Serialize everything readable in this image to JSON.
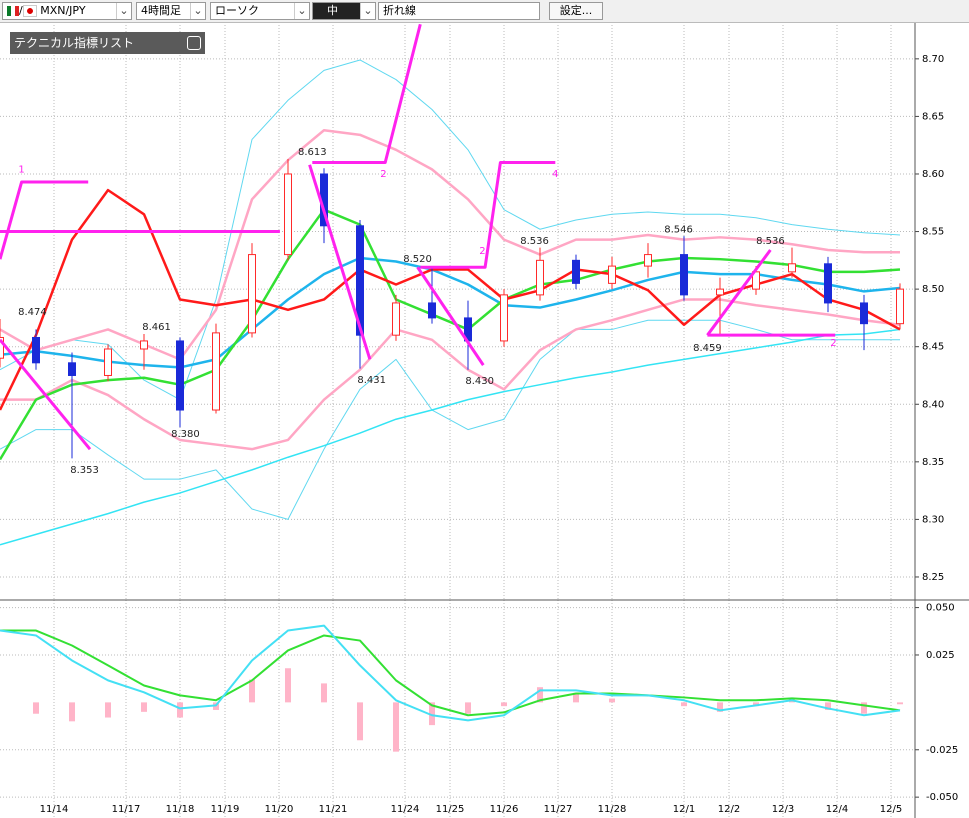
{
  "toolbar": {
    "symbol": "MXN/JPY",
    "timeframe": "4時間足",
    "chart_type": "ローソク",
    "size": "中",
    "line_type": "折れ線",
    "settings": "設定..."
  },
  "indicator_panel": {
    "title": "テクニカル指標リスト"
  },
  "chart_data": [
    {
      "type": "candlestick",
      "x": [
        0,
        4,
        8,
        12,
        16,
        20,
        24,
        28,
        32,
        36,
        40,
        44,
        48,
        52,
        56,
        60,
        64,
        68,
        72,
        76,
        80,
        84,
        88,
        92,
        96,
        100
      ],
      "open": [
        8.44,
        8.458,
        8.436,
        8.425,
        8.448,
        8.455,
        8.395,
        8.462,
        8.53,
        8.6,
        8.555,
        8.46,
        8.488,
        8.475,
        8.455,
        8.495,
        8.525,
        8.505,
        8.52,
        8.53,
        8.495,
        8.5,
        8.515,
        8.522,
        8.488,
        8.47
      ],
      "high": [
        8.474,
        8.465,
        8.445,
        8.452,
        8.461,
        8.458,
        8.47,
        8.54,
        8.613,
        8.605,
        8.56,
        8.495,
        8.52,
        8.49,
        8.5,
        8.536,
        8.53,
        8.528,
        8.54,
        8.546,
        8.51,
        8.52,
        8.536,
        8.528,
        8.495,
        8.505
      ],
      "low": [
        8.432,
        8.43,
        8.353,
        8.42,
        8.43,
        8.38,
        8.392,
        8.458,
        8.525,
        8.54,
        8.431,
        8.455,
        8.47,
        8.43,
        8.45,
        8.49,
        8.5,
        8.5,
        8.51,
        8.49,
        8.459,
        8.495,
        8.51,
        8.48,
        8.447,
        8.465
      ],
      "close": [
        8.458,
        8.436,
        8.425,
        8.448,
        8.455,
        8.395,
        8.462,
        8.53,
        8.6,
        8.555,
        8.46,
        8.488,
        8.475,
        8.455,
        8.495,
        8.525,
        8.505,
        8.52,
        8.53,
        8.495,
        8.5,
        8.515,
        8.522,
        8.488,
        8.47,
        8.5
      ],
      "up_color": "#ff2a2a",
      "down_color": "#1a2ad8",
      "series": [
        {
          "color": "#5fd8f0",
          "width": 1,
          "values": [
            8.43,
            8.447,
            8.456,
            8.452,
            8.421,
            8.404,
            8.491,
            8.63,
            8.664,
            8.69,
            8.699,
            8.682,
            8.656,
            8.621,
            8.569,
            8.552,
            8.56,
            8.565,
            8.567,
            8.565,
            8.565,
            8.562,
            8.556,
            8.552,
            8.549,
            8.547
          ]
        },
        {
          "color": "#5fd8f0",
          "width": 1,
          "values": [
            8.361,
            8.378,
            8.378,
            8.356,
            8.335,
            8.335,
            8.343,
            8.309,
            8.3,
            8.361,
            8.413,
            8.439,
            8.395,
            8.378,
            8.387,
            8.439,
            8.465,
            8.465,
            8.473,
            8.473,
            8.473,
            8.465,
            8.456,
            8.456,
            8.456,
            8.456
          ]
        },
        {
          "color": "#33e4f4",
          "width": 1.5,
          "values": [
            8.278,
            8.287,
            8.296,
            8.305,
            8.315,
            8.323,
            8.333,
            8.343,
            8.354,
            8.364,
            8.375,
            8.387,
            8.395,
            8.404,
            8.411,
            8.417,
            8.423,
            8.428,
            8.434,
            8.439,
            8.444,
            8.449,
            8.454,
            8.46,
            8.461,
            8.465
          ]
        },
        {
          "color": "#ffa6c4",
          "width": 2.5,
          "values": [
            8.465,
            8.447,
            8.456,
            8.465,
            8.452,
            8.439,
            8.482,
            8.578,
            8.612,
            8.638,
            8.634,
            8.621,
            8.604,
            8.578,
            8.543,
            8.53,
            8.543,
            8.543,
            8.547,
            8.543,
            8.545,
            8.543,
            8.539,
            8.534,
            8.532,
            8.532
          ]
        },
        {
          "color": "#ffa6c4",
          "width": 2.5,
          "values": [
            8.404,
            8.404,
            8.421,
            8.408,
            8.387,
            8.369,
            8.365,
            8.361,
            8.369,
            8.404,
            8.43,
            8.465,
            8.456,
            8.43,
            8.413,
            8.447,
            8.465,
            8.473,
            8.482,
            8.491,
            8.491,
            8.486,
            8.482,
            8.478,
            8.473,
            8.469
          ]
        },
        {
          "color": "#1eb4ec",
          "width": 2.5,
          "values": [
            8.443,
            8.446,
            8.442,
            8.437,
            8.434,
            8.432,
            8.439,
            8.465,
            8.491,
            8.513,
            8.527,
            8.524,
            8.517,
            8.504,
            8.486,
            8.484,
            8.491,
            8.499,
            8.508,
            8.515,
            8.513,
            8.513,
            8.508,
            8.504,
            8.498,
            8.501
          ]
        },
        {
          "color": "#33e033",
          "width": 2.5,
          "values": [
            8.352,
            8.404,
            8.417,
            8.421,
            8.423,
            8.417,
            8.43,
            8.473,
            8.526,
            8.569,
            8.556,
            8.491,
            8.478,
            8.465,
            8.491,
            8.504,
            8.508,
            8.517,
            8.524,
            8.527,
            8.526,
            8.524,
            8.521,
            8.515,
            8.515,
            8.517
          ]
        },
        {
          "color": "#ff1a1a",
          "width": 2.5,
          "values": [
            8.395,
            8.46,
            8.543,
            8.586,
            8.565,
            8.491,
            8.486,
            8.491,
            8.482,
            8.491,
            8.517,
            8.504,
            8.517,
            8.517,
            8.491,
            8.499,
            8.517,
            8.513,
            8.499,
            8.469,
            8.495,
            8.504,
            8.513,
            8.491,
            8.482,
            8.465
          ]
        }
      ],
      "drawings_color": "#ff22ee",
      "drawings": [
        {
          "x": [
            0,
            31.1
          ],
          "y": [
            8.55,
            8.55
          ]
        },
        {
          "x": [
            0,
            2.4,
            9.8
          ],
          "y": [
            8.526,
            8.593,
            8.593
          ]
        },
        {
          "x": [
            0,
            10
          ],
          "y": [
            8.456,
            8.361
          ]
        },
        {
          "x": [
            34.4,
            41.1
          ],
          "y": [
            8.608,
            8.439
          ]
        },
        {
          "x": [
            34.7,
            42.8,
            46.7
          ],
          "y": [
            8.61,
            8.61,
            8.73
          ]
        },
        {
          "x": [
            46.4,
            53.7
          ],
          "y": [
            8.519,
            8.434
          ]
        },
        {
          "x": [
            46.7,
            53.9,
            55.6,
            61.7
          ],
          "y": [
            8.519,
            8.519,
            8.61,
            8.61
          ]
        },
        {
          "x": [
            78.6,
            85.6
          ],
          "y": [
            8.46,
            8.534
          ]
        },
        {
          "x": [
            78.6,
            92.8
          ],
          "y": [
            8.46,
            8.46
          ]
        }
      ],
      "markers": [
        {
          "text": "1",
          "x": 2.4,
          "y": 8.604
        },
        {
          "text": "2",
          "x": 42.6,
          "y": 8.6
        },
        {
          "text": "2",
          "x": 53.6,
          "y": 8.533
        },
        {
          "text": "4",
          "x": 61.7,
          "y": 8.6
        },
        {
          "text": "2",
          "x": 92.6,
          "y": 8.453
        }
      ],
      "annotations": [
        {
          "text": "8.474",
          "x": 3.6,
          "y": 8.48
        },
        {
          "text": "8.353",
          "x": 9.4,
          "y": 8.343
        },
        {
          "text": "8.461",
          "x": 17.4,
          "y": 8.467
        },
        {
          "text": "8.380",
          "x": 20.6,
          "y": 8.374
        },
        {
          "text": "8.613",
          "x": 34.7,
          "y": 8.619
        },
        {
          "text": "8.431",
          "x": 41.3,
          "y": 8.421
        },
        {
          "text": "8.520",
          "x": 46.4,
          "y": 8.526
        },
        {
          "text": "8.430",
          "x": 53.3,
          "y": 8.42
        },
        {
          "text": "8.536",
          "x": 59.4,
          "y": 8.542
        },
        {
          "text": "8.546",
          "x": 75.4,
          "y": 8.552
        },
        {
          "text": "8.459",
          "x": 78.6,
          "y": 8.449
        },
        {
          "text": "8.536",
          "x": 85.6,
          "y": 8.542
        }
      ],
      "xlim": [
        0,
        102
      ],
      "ylim": [
        8.23,
        8.732
      ],
      "yticks": [
        8.25,
        {
          "value": 8.3,
          "label": "8.30"
        },
        8.35,
        {
          "value": 8.4,
          "label": "8.40"
        },
        8.45,
        {
          "value": 8.5,
          "label": "8.50"
        },
        8.55,
        {
          "value": 8.6,
          "label": "8.60"
        },
        8.65,
        {
          "value": 8.7,
          "label": "8.70"
        }
      ],
      "grid": true
    },
    {
      "type": "macd",
      "x": [
        0,
        4,
        8,
        12,
        16,
        20,
        24,
        28,
        32,
        36,
        40,
        44,
        48,
        52,
        56,
        60,
        64,
        68,
        72,
        76,
        80,
        84,
        88,
        92,
        96,
        100
      ],
      "histogram": {
        "color": "#ffb4c8",
        "values": [
          0,
          -0.006,
          -0.01,
          -0.008,
          -0.005,
          -0.008,
          -0.004,
          0.012,
          0.018,
          0.01,
          -0.02,
          -0.026,
          -0.012,
          -0.006,
          -0.002,
          0.008,
          0.005,
          0.002,
          0,
          -0.002,
          -0.005,
          -0.002,
          0.002,
          -0.004,
          -0.006,
          -0.001
        ]
      },
      "series": [
        {
          "color": "#33e033",
          "width": 2,
          "values": [
            0.0379,
            0.0379,
            0.03,
            0.0195,
            0.0089,
            0.0037,
            0.0011,
            0.0116,
            0.0274,
            0.0353,
            0.0326,
            0.0116,
            -0.0016,
            -0.0068,
            -0.0053,
            0.0011,
            0.0047,
            0.0047,
            0.0037,
            0.0026,
            0.0011,
            0.0011,
            0.0021,
            0.0011,
            -0.0016,
            -0.0042
          ]
        },
        {
          "color": "#44e0f4",
          "width": 2,
          "values": [
            0.0379,
            0.0353,
            0.0221,
            0.0116,
            0.0053,
            -0.0032,
            -0.0016,
            0.0221,
            0.0379,
            0.0405,
            0.0195,
            0.0011,
            -0.0068,
            -0.0095,
            -0.0068,
            0.0063,
            0.0063,
            0.0037,
            0.0037,
            0.0011,
            -0.0042,
            -0.0016,
            0.0011,
            -0.0032,
            -0.0068,
            -0.0042
          ]
        }
      ],
      "xlim": [
        0,
        102
      ],
      "ylim": [
        -0.061,
        0.054
      ],
      "yticks": [
        {
          "value": 0.05,
          "label": "0.050"
        },
        {
          "value": 0.025,
          "label": "0.025"
        },
        {
          "value": -0.025,
          "label": "-0.025"
        },
        {
          "value": -0.05,
          "label": "-0.050"
        }
      ],
      "xticks": [
        {
          "value": 6,
          "label": "11/14"
        },
        {
          "value": 14,
          "label": "11/17"
        },
        {
          "value": 20,
          "label": "11/18"
        },
        {
          "value": 25,
          "label": "11/19"
        },
        {
          "value": 31,
          "label": "11/20"
        },
        {
          "value": 37,
          "label": "11/21"
        },
        {
          "value": 45,
          "label": "11/24"
        },
        {
          "value": 50,
          "label": "11/25"
        },
        {
          "value": 56,
          "label": "11/26"
        },
        {
          "value": 62,
          "label": "11/27"
        },
        {
          "value": 68,
          "label": "11/28"
        },
        {
          "value": 76,
          "label": "12/1"
        },
        {
          "value": 81,
          "label": "12/2"
        },
        {
          "value": 87,
          "label": "12/3"
        },
        {
          "value": 93,
          "label": "12/4"
        },
        {
          "value": 99,
          "label": "12/5"
        }
      ],
      "grid": true
    }
  ]
}
